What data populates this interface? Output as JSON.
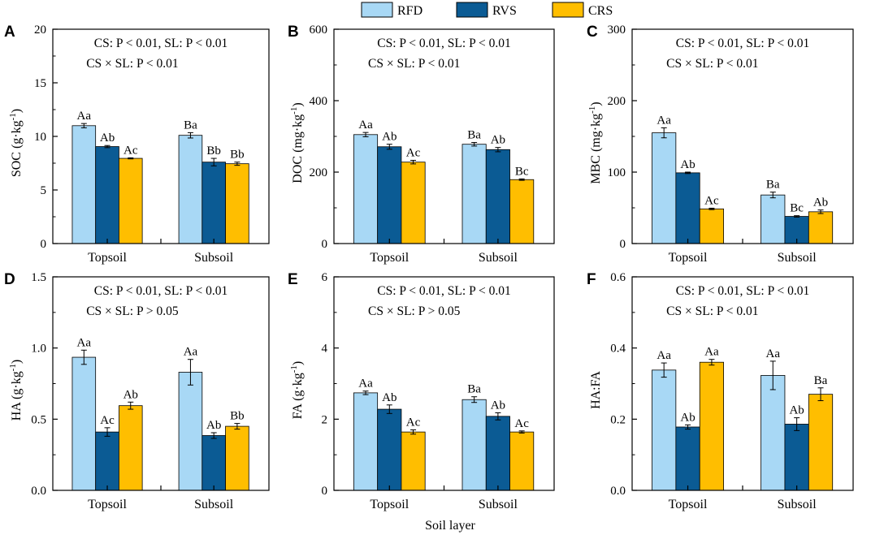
{
  "chart_data": {
    "shared_xlabel": "Soil layer",
    "legend": [
      {
        "name": "RFD",
        "color": "#A8D8F5"
      },
      {
        "name": "RVS",
        "color": "#0B5B94"
      },
      {
        "name": "CRS",
        "color": "#FFBE00"
      }
    ],
    "panels": [
      {
        "id": "A",
        "type": "bar",
        "ylabel_main": "SOC (g·kg",
        "ylabel_sup": "-1",
        "ylabel_end": ")",
        "ylim": [
          0,
          20
        ],
        "yticks": [
          0,
          5,
          10,
          15,
          20
        ],
        "yticklabels": [
          "0",
          "5",
          "10",
          "15",
          "20"
        ],
        "categories": [
          "Topsoil",
          "Subsoil"
        ],
        "stat_line1": "CS:  P < 0.01, SL: P < 0.01",
        "stat_line2": "CS × SL: P < 0.01",
        "series": [
          {
            "name": "RFD",
            "values": [
              11.0,
              10.1
            ],
            "errors": [
              0.2,
              0.25
            ],
            "labels": [
              "Aa",
              "Ba"
            ]
          },
          {
            "name": "RVS",
            "values": [
              9.05,
              7.6
            ],
            "errors": [
              0.1,
              0.35
            ],
            "labels": [
              "Ab",
              "Bb"
            ]
          },
          {
            "name": "CRS",
            "values": [
              7.95,
              7.45
            ],
            "errors": [
              0.05,
              0.15
            ],
            "labels": [
              "Ac",
              "Bb"
            ]
          }
        ]
      },
      {
        "id": "B",
        "type": "bar",
        "ylabel_main": "DOC (mg·kg",
        "ylabel_sup": "-1",
        "ylabel_end": ")",
        "ylim": [
          0,
          600
        ],
        "yticks": [
          0,
          200,
          400,
          600
        ],
        "yticklabels": [
          "0",
          "200",
          "400",
          "600"
        ],
        "categories": [
          "Topsoil",
          "Subsoil"
        ],
        "stat_line1": "CS:  P < 0.01, SL: P < 0.01",
        "stat_line2": "CS × SL: P < 0.01",
        "series": [
          {
            "name": "RFD",
            "values": [
              305,
              278
            ],
            "errors": [
              6,
              5
            ],
            "labels": [
              "Aa",
              "Ba"
            ]
          },
          {
            "name": "RVS",
            "values": [
              271,
              263
            ],
            "errors": [
              7,
              6
            ],
            "labels": [
              "Ab",
              "Ab"
            ]
          },
          {
            "name": "CRS",
            "values": [
              228,
              179
            ],
            "errors": [
              5,
              2
            ],
            "labels": [
              "Ac",
              "Bc"
            ]
          }
        ]
      },
      {
        "id": "C",
        "type": "bar",
        "ylabel_main": "MBC (mg·kg",
        "ylabel_sup": "-1",
        "ylabel_end": ")",
        "ylim": [
          0,
          300
        ],
        "yticks": [
          0,
          100,
          200,
          300
        ],
        "yticklabels": [
          "0",
          "100",
          "200",
          "300"
        ],
        "categories": [
          "Topsoil",
          "Subsoil"
        ],
        "stat_line1": "CS:  P < 0.01, SL: P < 0.01",
        "stat_line2": "CS × SL: P < 0.01",
        "series": [
          {
            "name": "RFD",
            "values": [
              155,
              68
            ],
            "errors": [
              7,
              4
            ],
            "labels": [
              "Aa",
              "Ba"
            ]
          },
          {
            "name": "RVS",
            "values": [
              99,
              38
            ],
            "errors": [
              1,
              1
            ],
            "labels": [
              "Ab",
              "Bc"
            ]
          },
          {
            "name": "CRS",
            "values": [
              48.5,
              44.5
            ],
            "errors": [
              1,
              2.5
            ],
            "labels": [
              "Ac",
              "Ab"
            ]
          }
        ]
      },
      {
        "id": "D",
        "type": "bar",
        "ylabel_main": "HA (g·kg",
        "ylabel_sup": "-1",
        "ylabel_end": ")",
        "ylim": [
          0,
          1.5
        ],
        "yticks": [
          0,
          0.5,
          1.0,
          1.5
        ],
        "yticklabels": [
          "0.0",
          "0.5",
          "1.0",
          "1.5"
        ],
        "categories": [
          "Topsoil",
          "Subsoil"
        ],
        "stat_line1": "CS:  P < 0.01, SL: P < 0.01",
        "stat_line2": "CS × SL: P > 0.05",
        "series": [
          {
            "name": "RFD",
            "values": [
              0.935,
              0.83
            ],
            "errors": [
              0.05,
              0.09
            ],
            "labels": [
              "Aa",
              "Aa"
            ]
          },
          {
            "name": "RVS",
            "values": [
              0.41,
              0.385
            ],
            "errors": [
              0.03,
              0.02
            ],
            "labels": [
              "Ac",
              "Ab"
            ]
          },
          {
            "name": "CRS",
            "values": [
              0.595,
              0.45
            ],
            "errors": [
              0.025,
              0.02
            ],
            "labels": [
              "Ab",
              "Bb"
            ]
          }
        ]
      },
      {
        "id": "E",
        "type": "bar",
        "ylabel_main": "FA (g·kg",
        "ylabel_sup": "-1",
        "ylabel_end": ")",
        "ylim": [
          0,
          6
        ],
        "yticks": [
          0,
          2,
          4,
          6
        ],
        "yticklabels": [
          "0",
          "2",
          "4",
          "6"
        ],
        "categories": [
          "Topsoil",
          "Subsoil"
        ],
        "stat_line1": "CS:  P < 0.01, SL: P < 0.01",
        "stat_line2": "CS × SL: P > 0.05",
        "series": [
          {
            "name": "RFD",
            "values": [
              2.74,
              2.55
            ],
            "errors": [
              0.05,
              0.08
            ],
            "labels": [
              "Aa",
              "Ba"
            ]
          },
          {
            "name": "RVS",
            "values": [
              2.28,
              2.08
            ],
            "errors": [
              0.12,
              0.1
            ],
            "labels": [
              "Ab",
              "Ab"
            ]
          },
          {
            "name": "CRS",
            "values": [
              1.64,
              1.64
            ],
            "errors": [
              0.06,
              0.03
            ],
            "labels": [
              "Ac",
              "Ac"
            ]
          }
        ]
      },
      {
        "id": "F",
        "type": "bar",
        "ylabel_main": "HA:FA",
        "ylabel_sup": "",
        "ylabel_end": "",
        "ylim": [
          0,
          0.6
        ],
        "yticks": [
          0,
          0.2,
          0.4,
          0.6
        ],
        "yticklabels": [
          "0.0",
          "0.2",
          "0.4",
          "0.6"
        ],
        "categories": [
          "Topsoil",
          "Subsoil"
        ],
        "stat_line1": "CS:  P < 0.01, SL: P < 0.01",
        "stat_line2": "CS × SL: P < 0.01",
        "series": [
          {
            "name": "RFD",
            "values": [
              0.338,
              0.323
            ],
            "errors": [
              0.02,
              0.04
            ],
            "labels": [
              "Aa",
              "Aa"
            ]
          },
          {
            "name": "RVS",
            "values": [
              0.178,
              0.186
            ],
            "errors": [
              0.006,
              0.018
            ],
            "labels": [
              "Ab",
              "Ab"
            ]
          },
          {
            "name": "CRS",
            "values": [
              0.36,
              0.27
            ],
            "errors": [
              0.008,
              0.018
            ],
            "labels": [
              "Aa",
              "Ba"
            ]
          }
        ]
      }
    ]
  }
}
